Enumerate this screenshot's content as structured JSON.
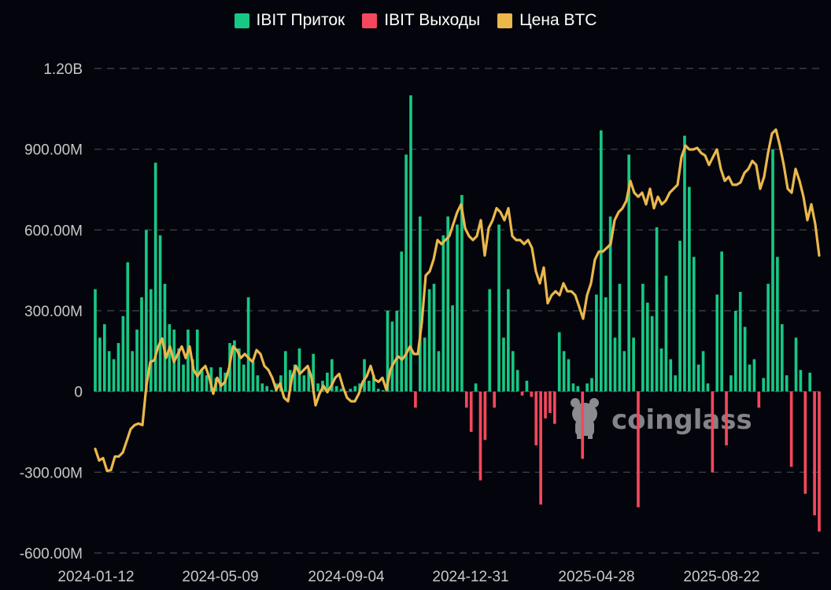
{
  "legend": [
    {
      "label": "IBIT Приток",
      "color": "#17c784"
    },
    {
      "label": "IBIT Выходы",
      "color": "#f5475d"
    },
    {
      "label": "Цена BTC",
      "color": "#ebb84c"
    }
  ],
  "watermark": {
    "text": "coinglass",
    "icon": "coinglass-logo-icon"
  },
  "chart_data": {
    "type": "bar+line",
    "title": "",
    "xlabel": "",
    "ylabel": "",
    "y_ticks": [
      "1.20B",
      "900.00M",
      "600.00M",
      "300.00M",
      "0",
      "-300.00M",
      "-600.00M"
    ],
    "y_tick_values_musd": [
      1200,
      900,
      600,
      300,
      0,
      -300,
      -600
    ],
    "ylim_musd": [
      -600,
      1200
    ],
    "x_ticks": [
      "2024-01-12",
      "2024-05-09",
      "2024-09-04",
      "2024-12-31",
      "2025-04-28",
      "2025-08-22"
    ],
    "x_range": [
      "2024-01-11",
      "2025-11-21"
    ],
    "grid": true,
    "legend_position": "top-center",
    "flows_unit": "USD millions",
    "flows": [
      380,
      200,
      250,
      150,
      120,
      180,
      280,
      480,
      150,
      230,
      350,
      600,
      380,
      850,
      580,
      400,
      250,
      230,
      160,
      100,
      230,
      120,
      230,
      80,
      60,
      90,
      50,
      90,
      70,
      180,
      190,
      160,
      100,
      350,
      110,
      60,
      30,
      20,
      5,
      30,
      60,
      150,
      80,
      100,
      160,
      60,
      80,
      140,
      30,
      40,
      70,
      120,
      20,
      10,
      -5,
      10,
      20,
      30,
      120,
      40,
      60,
      10,
      5,
      300,
      260,
      300,
      520,
      880,
      1100,
      -60,
      650,
      200,
      380,
      400,
      150,
      580,
      650,
      320,
      620,
      730,
      -60,
      -150,
      30,
      -330,
      -180,
      380,
      -60,
      620,
      200,
      380,
      150,
      80,
      -15,
      40,
      -20,
      -200,
      -420,
      -100,
      -80,
      -120,
      220,
      150,
      120,
      30,
      20,
      -250,
      30,
      50,
      360,
      970,
      350,
      650,
      200,
      400,
      150,
      880,
      200,
      -430,
      400,
      330,
      280,
      610,
      160,
      430,
      120,
      60,
      560,
      950,
      760,
      500,
      100,
      150,
      30,
      -300,
      360,
      520,
      -200,
      60,
      300,
      370,
      240,
      100,
      120,
      -60,
      50,
      400,
      900,
      500,
      250,
      60,
      -280,
      200,
      80,
      -380,
      70,
      -460,
      -520
    ],
    "price_unit": "USD thousands (hidden axis)",
    "price_range": [
      19,
      141
    ],
    "btc_price": [
      45.2,
      42.3,
      42.9,
      39.7,
      39.9,
      43.3,
      43.3,
      44.3,
      47.2,
      50.2,
      51.2,
      51.6,
      51.2,
      61.1,
      67.1,
      67.5,
      71.0,
      73.0,
      68.1,
      71.0,
      67.1,
      69.1,
      71.0,
      68.1,
      71.0,
      65.1,
      63.5,
      65.1,
      66.1,
      63.1,
      59.1,
      63.1,
      61.1,
      62.1,
      65.5,
      71.0,
      70.1,
      68.1,
      69.1,
      68.1,
      67.1,
      70.1,
      69.1,
      66.1,
      65.1,
      63.1,
      60.1,
      61.7,
      58.1,
      57.2,
      63.1,
      66.1,
      64.1,
      65.1,
      66.1,
      63.1,
      56.2,
      59.1,
      61.1,
      59.5,
      61.1,
      63.1,
      64.1,
      60.7,
      58.1,
      57.2,
      57.2,
      59.1,
      62.1,
      63.5,
      66.1,
      62.7,
      62.1,
      63.1,
      60.1,
      65.1,
      67.1,
      68.5,
      67.7,
      69.1,
      71.0,
      69.1,
      69.1,
      77.0,
      88.9,
      89.9,
      92.9,
      97.8,
      96.8,
      97.8,
      98.8,
      101.8,
      104.8,
      106.8,
      100.8,
      98.8,
      97.8,
      98.8,
      102.8,
      93.9,
      100.8,
      102.8,
      105.8,
      104.8,
      102.8,
      105.8,
      98.8,
      97.8,
      97.8,
      96.8,
      97.8,
      95.8,
      89.9,
      86.9,
      90.9,
      81.9,
      83.9,
      84.9,
      83.9,
      86.9,
      84.9,
      84.9,
      83.9,
      81.0,
      78.0,
      83.9,
      86.9,
      92.9,
      94.9,
      94.9,
      95.8,
      96.8,
      102.8,
      104.8,
      105.8,
      107.7,
      112.7,
      109.7,
      108.7,
      109.7,
      106.8,
      110.7,
      105.8,
      108.7,
      106.8,
      107.7,
      109.7,
      110.7,
      111.7,
      118.7,
      121.6,
      120.6,
      120.6,
      121.0,
      119.7,
      119.1,
      116.7,
      118.7,
      120.6,
      115.7,
      112.7,
      113.7,
      111.7,
      111.7,
      112.3,
      114.7,
      115.7,
      117.7,
      116.7,
      110.7,
      113.7,
      119.7,
      124.6,
      125.6,
      121.6,
      116.7,
      110.7,
      109.7,
      115.7,
      112.7,
      108.7,
      102.8,
      106.8,
      101.8,
      93.9
    ]
  }
}
